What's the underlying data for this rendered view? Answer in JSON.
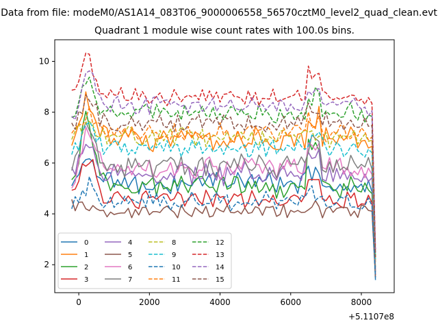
{
  "figure": {
    "suptitle": "Data from file: modeM0/AS1A14_083T06_9000006558_56570cztM0_level2_quad_clean.evt",
    "title": "Quadrant 1 module wise count rates with 100.0s bins.",
    "offset_text": "+5.1107e8"
  },
  "chart_data": {
    "type": "line",
    "title": "Quadrant 1 module wise count rates with 100.0s bins.",
    "xlabel": "",
    "ylabel": "",
    "xlim": [
      -680,
      8930
    ],
    "ylim": [
      0.9,
      10.85
    ],
    "x_offset": 511070000,
    "x_start": -200,
    "x_step": 100,
    "x_ticks": [
      0,
      2000,
      4000,
      6000,
      8000
    ],
    "x_tick_labels": [
      "0",
      "2000",
      "4000",
      "6000",
      "8000"
    ],
    "y_ticks": [
      2,
      4,
      6,
      8,
      10
    ],
    "y_tick_labels": [
      "2",
      "4",
      "6",
      "8",
      "10"
    ],
    "grid": false,
    "legend_position": "lower-left",
    "legend_columns": 4,
    "series": [
      {
        "name": "0",
        "color": "#1f77b4",
        "dash": "solid",
        "mean": 5.2,
        "amp": 0.35,
        "start": 4.9,
        "peak": 6.0,
        "tail": 5.1,
        "end": 1.4
      },
      {
        "name": "1",
        "color": "#ff7f0e",
        "dash": "solid",
        "mean": 7.0,
        "amp": 0.4,
        "start": 6.6,
        "peak": 8.3,
        "tail": 6.9,
        "end": 2.1
      },
      {
        "name": "2",
        "color": "#2ca02c",
        "dash": "solid",
        "mean": 5.1,
        "amp": 0.35,
        "start": 5.0,
        "peak": 7.8,
        "tail": 5.0,
        "end": 1.9
      },
      {
        "name": "3",
        "color": "#d62728",
        "dash": "solid",
        "mean": 4.6,
        "amp": 0.3,
        "start": 4.8,
        "peak": 6.4,
        "tail": 4.6,
        "end": 1.6
      },
      {
        "name": "4",
        "color": "#9467bd",
        "dash": "solid",
        "mean": 5.6,
        "amp": 0.35,
        "start": 5.5,
        "peak": 6.9,
        "tail": 5.6,
        "end": 1.7
      },
      {
        "name": "5",
        "color": "#8c564b",
        "dash": "solid",
        "mean": 4.1,
        "amp": 0.2,
        "start": 4.3,
        "peak": 4.4,
        "tail": 4.2,
        "end": 1.5
      },
      {
        "name": "6",
        "color": "#e377c2",
        "dash": "solid",
        "mean": 5.8,
        "amp": 0.35,
        "start": 5.3,
        "peak": 7.2,
        "tail": 5.7,
        "end": 1.8
      },
      {
        "name": "7",
        "color": "#7f7f7f",
        "dash": "solid",
        "mean": 5.9,
        "amp": 0.35,
        "start": 5.8,
        "peak": 7.6,
        "tail": 5.9,
        "end": 1.7
      },
      {
        "name": "8",
        "color": "#bcbd22",
        "dash": "dashed",
        "mean": 7.0,
        "amp": 0.3,
        "start": 7.2,
        "peak": 7.4,
        "tail": 7.0,
        "end": 2.3
      },
      {
        "name": "9",
        "color": "#17becf",
        "dash": "dashed",
        "mean": 6.6,
        "amp": 0.3,
        "start": 6.4,
        "peak": 7.2,
        "tail": 6.5,
        "end": 2.2
      },
      {
        "name": "10",
        "color": "#1f77b4",
        "dash": "dashed",
        "mean": 4.5,
        "amp": 0.3,
        "start": 4.4,
        "peak": 5.1,
        "tail": 4.4,
        "end": 1.5
      },
      {
        "name": "11",
        "color": "#ff7f0e",
        "dash": "dashed",
        "mean": 7.2,
        "amp": 0.3,
        "start": 7.2,
        "peak": 7.9,
        "tail": 7.1,
        "end": 2.2
      },
      {
        "name": "12",
        "color": "#2ca02c",
        "dash": "dashed",
        "mean": 8.0,
        "amp": 0.3,
        "start": 7.6,
        "peak": 9.2,
        "tail": 7.9,
        "end": 2.4
      },
      {
        "name": "13",
        "color": "#d62728",
        "dash": "dashed",
        "mean": 8.6,
        "amp": 0.3,
        "start": 8.8,
        "peak": 10.4,
        "tail": 8.4,
        "end": 2.6
      },
      {
        "name": "14",
        "color": "#9467bd",
        "dash": "dashed",
        "mean": 8.3,
        "amp": 0.3,
        "start": 7.6,
        "peak": 9.3,
        "tail": 8.1,
        "end": 2.5
      },
      {
        "name": "15",
        "color": "#8c564b",
        "dash": "dashed",
        "mean": 7.6,
        "amp": 0.3,
        "start": 7.5,
        "peak": 8.4,
        "tail": 7.5,
        "end": 2.3
      }
    ]
  }
}
